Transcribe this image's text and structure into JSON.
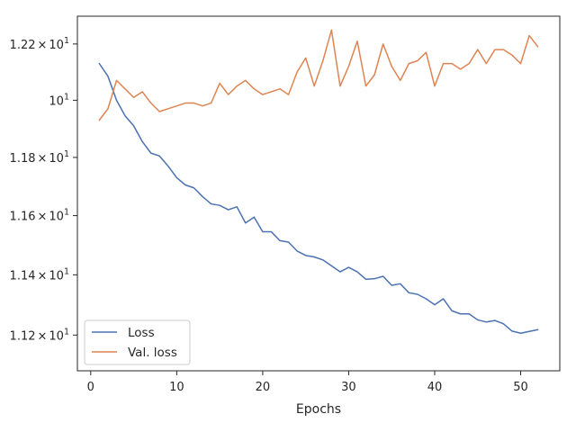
{
  "chart_data": {
    "type": "line",
    "xlabel": "Epochs",
    "ylabel": "",
    "xlim": [
      -1.55,
      54.55
    ],
    "ylim": [
      11.083,
      12.3
    ],
    "y_scale": "log",
    "grid": false,
    "legend_position": "lower-left",
    "x_ticks": [
      {
        "value": 0,
        "label": "0"
      },
      {
        "value": 10,
        "label": "10"
      },
      {
        "value": 20,
        "label": "20"
      },
      {
        "value": 30,
        "label": "30"
      },
      {
        "value": 40,
        "label": "40"
      },
      {
        "value": 50,
        "label": "50"
      }
    ],
    "y_ticks": [
      {
        "value": 11.2,
        "mantissa": "1.12",
        "times": "×",
        "base": "10",
        "exp": "1"
      },
      {
        "value": 11.4,
        "mantissa": "1.14",
        "times": "×",
        "base": "10",
        "exp": "1"
      },
      {
        "value": 11.6,
        "mantissa": "1.16",
        "times": "×",
        "base": "10",
        "exp": "1"
      },
      {
        "value": 11.8,
        "mantissa": "1.18",
        "times": "×",
        "base": "10",
        "exp": "1"
      },
      {
        "value": 12.0,
        "mantissa": "",
        "times": "",
        "base": "10",
        "exp": "1"
      },
      {
        "value": 12.2,
        "mantissa": "1.22",
        "times": "×",
        "base": "10",
        "exp": "1"
      }
    ],
    "x": [
      1,
      2,
      3,
      4,
      5,
      6,
      7,
      8,
      9,
      10,
      11,
      12,
      13,
      14,
      15,
      16,
      17,
      18,
      19,
      20,
      21,
      22,
      23,
      24,
      25,
      26,
      27,
      28,
      29,
      30,
      31,
      32,
      33,
      34,
      35,
      36,
      37,
      38,
      39,
      40,
      41,
      42,
      43,
      44,
      45,
      46,
      47,
      48,
      49,
      50,
      51,
      52
    ],
    "series": [
      {
        "name": "Loss",
        "color": "#4c72b0",
        "values": [
          12.13,
          12.085,
          12.0,
          11.945,
          11.91,
          11.855,
          11.815,
          11.805,
          11.77,
          11.73,
          11.705,
          11.695,
          11.665,
          11.64,
          11.635,
          11.62,
          11.63,
          11.575,
          11.595,
          11.545,
          11.545,
          11.515,
          11.51,
          11.48,
          11.465,
          11.46,
          11.45,
          11.43,
          11.41,
          11.425,
          11.41,
          11.385,
          11.387,
          11.395,
          11.365,
          11.37,
          11.34,
          11.335,
          11.32,
          11.3,
          11.32,
          11.28,
          11.27,
          11.27,
          11.25,
          11.243,
          11.248,
          11.237,
          11.213,
          11.206,
          11.212,
          11.218
        ]
      },
      {
        "name": "Val. loss",
        "color": "#dd8452",
        "values": [
          11.93,
          11.97,
          12.07,
          12.04,
          12.01,
          12.03,
          11.99,
          11.96,
          11.97,
          11.98,
          11.99,
          11.99,
          11.98,
          11.99,
          12.06,
          12.02,
          12.05,
          12.07,
          12.04,
          12.02,
          12.03,
          12.04,
          12.02,
          12.1,
          12.15,
          12.05,
          12.14,
          12.25,
          12.05,
          12.12,
          12.21,
          12.05,
          12.09,
          12.2,
          12.12,
          12.07,
          12.13,
          12.14,
          12.17,
          12.05,
          12.13,
          12.13,
          12.11,
          12.13,
          12.18,
          12.13,
          12.18,
          12.18,
          12.16,
          12.13,
          12.23,
          12.19
        ]
      }
    ]
  }
}
